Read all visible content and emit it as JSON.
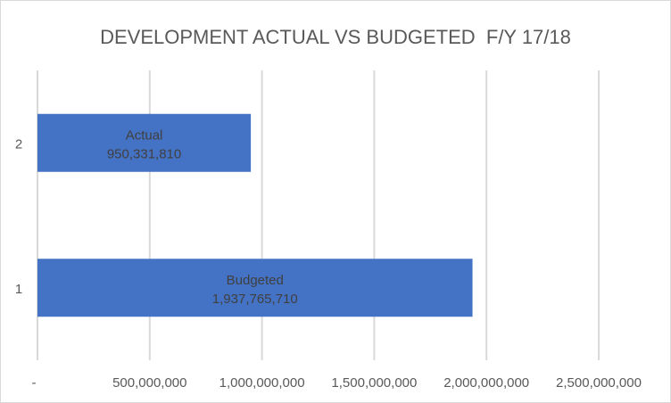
{
  "chart_data": {
    "type": "bar",
    "orientation": "horizontal",
    "title": "DEVELOPMENT ACTUAL VS BUDGETED  F/Y 17/18",
    "categories": [
      "1",
      "2"
    ],
    "series_labels": [
      "Budgeted",
      "Actual"
    ],
    "values": [
      1937765710,
      950331810
    ],
    "value_labels": [
      "1,937,765,710",
      "950,331,810"
    ],
    "xlim": [
      0,
      2500000000
    ],
    "x_ticks": [
      0,
      500000000,
      1000000000,
      1500000000,
      2000000000,
      2500000000
    ],
    "x_tick_labels": [
      "-",
      "500,000,000",
      "1,000,000,000",
      "1,500,000,000",
      "2,000,000,000",
      "2,500,000,000"
    ],
    "grid": true,
    "bar_color": "#4472c4"
  }
}
